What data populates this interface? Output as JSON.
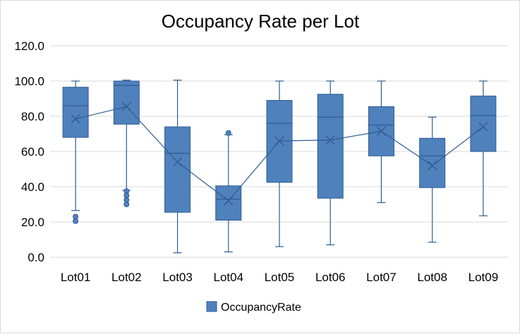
{
  "chart_data": {
    "type": "box",
    "title": "Occupancy Rate per Lot",
    "xlabel": "",
    "ylabel": "",
    "ylim": [
      0,
      120
    ],
    "yticks": [
      0,
      20,
      40,
      60,
      80,
      100,
      120
    ],
    "ytick_labels": [
      "0.0",
      "20.0",
      "40.0",
      "60.0",
      "80.0",
      "100.0",
      "120.0"
    ],
    "grid": true,
    "legend_position": "bottom",
    "series": [
      {
        "name": "OccupancyRate",
        "color": "#4f81bd",
        "edge_color": "#2f5d91",
        "categories": [
          "Lot01",
          "Lot02",
          "Lot03",
          "Lot04",
          "Lot05",
          "Lot06",
          "Lot07",
          "Lot08",
          "Lot09"
        ],
        "boxes": [
          {
            "min": 26.5,
            "q1": 68.0,
            "median": 86.0,
            "q3": 96.5,
            "max": 100.0,
            "mean": 78.5,
            "outliers": [
              23.0,
              20.5
            ]
          },
          {
            "min": 38.0,
            "q1": 75.5,
            "median": 97.5,
            "q3": 100.0,
            "max": 100.5,
            "mean": 85.5,
            "outliers": [
              37.5,
              35.0,
              32.5,
              30.0
            ]
          },
          {
            "min": 2.5,
            "q1": 25.5,
            "median": 59.0,
            "q3": 74.0,
            "max": 100.5,
            "mean": 54.0,
            "outliers": []
          },
          {
            "min": 3.0,
            "q1": 21.0,
            "median": 33.0,
            "q3": 40.5,
            "max": 69.5,
            "mean": 32.0,
            "outliers": [
              70.5
            ]
          },
          {
            "min": 6.0,
            "q1": 42.5,
            "median": 76.0,
            "q3": 89.0,
            "max": 100.0,
            "mean": 66.0,
            "outliers": []
          },
          {
            "min": 7.0,
            "q1": 33.5,
            "median": 79.5,
            "q3": 92.5,
            "max": 100.0,
            "mean": 66.5,
            "outliers": []
          },
          {
            "min": 31.0,
            "q1": 57.5,
            "median": 75.0,
            "q3": 85.5,
            "max": 100.0,
            "mean": 71.5,
            "outliers": []
          },
          {
            "min": 8.5,
            "q1": 39.5,
            "median": 57.5,
            "q3": 67.5,
            "max": 79.5,
            "mean": 52.0,
            "outliers": []
          },
          {
            "min": 23.5,
            "q1": 60.0,
            "median": 80.5,
            "q3": 91.5,
            "max": 100.0,
            "mean": 74.0,
            "outliers": []
          }
        ]
      }
    ],
    "mean_line": true
  }
}
